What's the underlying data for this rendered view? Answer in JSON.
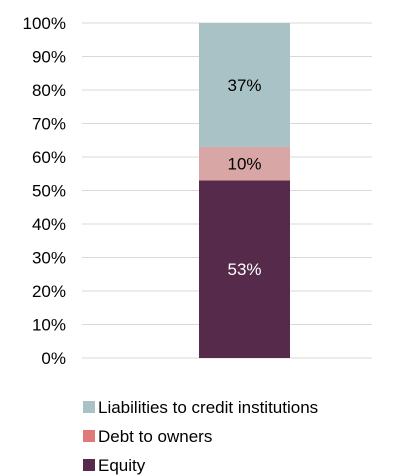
{
  "chart_data": {
    "type": "bar",
    "stacked": true,
    "categories": [
      ""
    ],
    "series": [
      {
        "name": "Equity",
        "values": [
          53
        ],
        "label": "53%",
        "color": "#552a4a",
        "label_color": "#ffffff"
      },
      {
        "name": "Debt to owners",
        "values": [
          10
        ],
        "label": "10%",
        "color": "#d9a6a6",
        "label_color": "#000000"
      },
      {
        "name": "Liabilities to credit institutions",
        "values": [
          37
        ],
        "label": "37%",
        "color": "#a9c2c6",
        "label_color": "#000000"
      }
    ],
    "y_ticks": [
      "0%",
      "10%",
      "20%",
      "30%",
      "40%",
      "50%",
      "60%",
      "70%",
      "80%",
      "90%",
      "100%"
    ],
    "ylim": [
      0,
      100
    ],
    "grid": true,
    "legend": {
      "position": "bottom",
      "items": [
        {
          "label": "Liabilities to credit institutions",
          "color": "#a9c2c6"
        },
        {
          "label": "Debt to owners",
          "color": "#e07a78"
        },
        {
          "label": "Equity",
          "color": "#552a4a"
        }
      ]
    }
  }
}
